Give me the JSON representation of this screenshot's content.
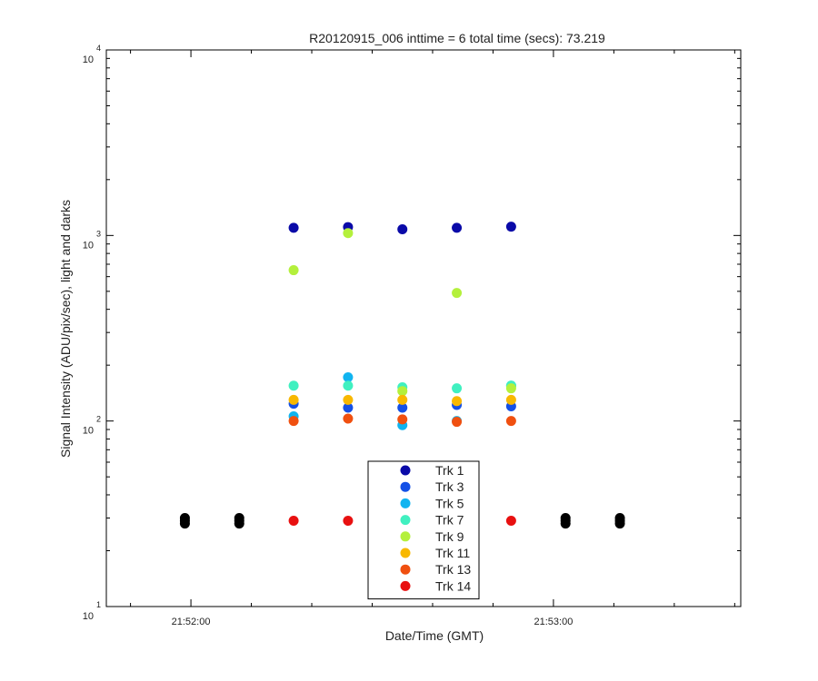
{
  "chart_data": {
    "type": "scatter",
    "title": "R20120915_006 inttime = 6 total time (secs): 73.219",
    "xlabel": "Date/Time (GMT)",
    "ylabel": "Signal Intensity (ADU/pix/sec), light and darks",
    "x_scale": "time",
    "y_scale": "log",
    "xlim": [
      "21:51:46",
      "21:53:31"
    ],
    "ylim": [
      10,
      10000
    ],
    "x_ticks": [
      "21:52:00",
      "21:53:00"
    ],
    "y_ticks": [
      {
        "base": "10",
        "exp": "1"
      },
      {
        "base": "10",
        "exp": "2"
      },
      {
        "base": "10",
        "exp": "3"
      },
      {
        "base": "10",
        "exp": "4"
      }
    ],
    "grid": false,
    "legend_position": "bottom-center",
    "series": [
      {
        "name": "Trk 1",
        "color": "#0a0aa8",
        "x": [
          "21:52:17",
          "21:52:26",
          "21:52:35",
          "21:52:44",
          "21:52:53"
        ],
        "y": [
          1100,
          1110,
          1080,
          1100,
          1115
        ]
      },
      {
        "name": "Trk 3",
        "color": "#1450e6",
        "x": [
          "21:52:17",
          "21:52:26",
          "21:52:35",
          "21:52:44",
          "21:52:53"
        ],
        "y": [
          124,
          118,
          118,
          122,
          120
        ]
      },
      {
        "name": "Trk 5",
        "color": "#10b4f0",
        "x": [
          "21:52:17",
          "21:52:26",
          "21:52:35",
          "21:52:44",
          "21:52:53"
        ],
        "y": [
          106,
          172,
          95,
          100,
          155
        ]
      },
      {
        "name": "Trk 7",
        "color": "#40f0c0",
        "x": [
          "21:52:17",
          "21:52:26",
          "21:52:35",
          "21:52:44",
          "21:52:53"
        ],
        "y": [
          155,
          155,
          152,
          150,
          155
        ]
      },
      {
        "name": "Trk 9",
        "color": "#b4f03c",
        "x": [
          "21:52:17",
          "21:52:26",
          "21:52:35",
          "21:52:44",
          "21:52:53"
        ],
        "y": [
          650,
          1030,
          145,
          490,
          150
        ]
      },
      {
        "name": "Trk 11",
        "color": "#f8b800",
        "x": [
          "21:52:17",
          "21:52:26",
          "21:52:35",
          "21:52:44",
          "21:52:53"
        ],
        "y": [
          130,
          130,
          130,
          128,
          130
        ]
      },
      {
        "name": "Trk 13",
        "color": "#f05010",
        "x": [
          "21:52:17",
          "21:52:26",
          "21:52:35",
          "21:52:44",
          "21:52:53"
        ],
        "y": [
          100,
          103,
          102,
          99,
          100
        ]
      },
      {
        "name": "Trk 14",
        "color": "#e81010",
        "x": [
          "21:52:17",
          "21:52:26",
          "21:52:35",
          "21:52:44",
          "21:52:53"
        ],
        "y": [
          29,
          29,
          29,
          29,
          29
        ]
      },
      {
        "name": "",
        "color": "#000000",
        "x": [
          "21:51:59",
          "21:51:59",
          "21:51:59",
          "21:52:08",
          "21:52:08",
          "21:52:08",
          "21:53:02",
          "21:53:02",
          "21:53:02",
          "21:53:11",
          "21:53:11",
          "21:53:11"
        ],
        "y": [
          28,
          29,
          30,
          28,
          29,
          30,
          28,
          29,
          30,
          28,
          29,
          30
        ]
      }
    ]
  }
}
